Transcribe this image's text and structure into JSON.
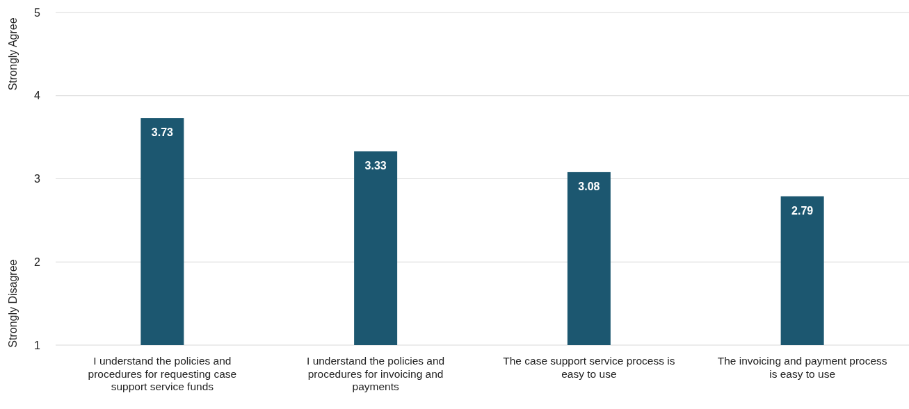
{
  "chart_data": {
    "type": "bar",
    "categories": [
      "I understand the policies and procedures for requesting case support service funds",
      "I understand the policies and procedures for invoicing and payments",
      "The case support service process is easy to use",
      "The invoicing and payment process is easy to use"
    ],
    "values": [
      3.73,
      3.33,
      3.08,
      2.79
    ],
    "color": "#1c5770",
    "ylim": [
      1,
      5
    ],
    "yticks": [
      1,
      2,
      3,
      4,
      5
    ],
    "grid": "y",
    "data_labels": true,
    "annotations": [
      "Strongly Agree",
      "Strongly Disagree"
    ]
  }
}
